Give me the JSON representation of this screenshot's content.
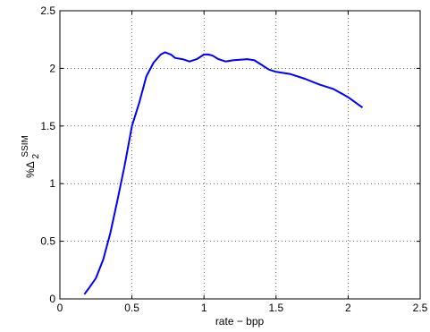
{
  "chart_data": {
    "type": "line",
    "xlabel": "rate − bpp",
    "ylabel": {
      "prefix": "%Δ",
      "subscript": "2",
      "superscript": "SSIM"
    },
    "xlim": [
      0,
      2.5
    ],
    "ylim": [
      0,
      2.5
    ],
    "x_ticks": [
      0,
      0.5,
      1,
      1.5,
      2,
      2.5
    ],
    "y_ticks": [
      0,
      0.5,
      1,
      1.5,
      2,
      2.5
    ],
    "x_tick_labels": [
      "0",
      "0.5",
      "1",
      "1.5",
      "2",
      "2.5"
    ],
    "y_tick_labels": [
      "0",
      "0.5",
      "1",
      "1.5",
      "2",
      "2.5"
    ],
    "grid": true,
    "series": [
      {
        "color": "#0000ff",
        "x": [
          0.17,
          0.2,
          0.25,
          0.3,
          0.35,
          0.4,
          0.45,
          0.5,
          0.55,
          0.6,
          0.65,
          0.7,
          0.73,
          0.75,
          0.77,
          0.8,
          0.85,
          0.9,
          0.95,
          1.0,
          1.03,
          1.06,
          1.1,
          1.15,
          1.2,
          1.3,
          1.35,
          1.4,
          1.45,
          1.5,
          1.6,
          1.7,
          1.8,
          1.9,
          2.0,
          2.1
        ],
        "y": [
          0.04,
          0.09,
          0.18,
          0.34,
          0.57,
          0.86,
          1.16,
          1.5,
          1.7,
          1.93,
          2.05,
          2.12,
          2.14,
          2.13,
          2.12,
          2.09,
          2.08,
          2.06,
          2.08,
          2.12,
          2.12,
          2.11,
          2.08,
          2.06,
          2.07,
          2.08,
          2.07,
          2.03,
          1.99,
          1.97,
          1.95,
          1.91,
          1.86,
          1.82,
          1.75,
          1.66
        ]
      }
    ]
  }
}
